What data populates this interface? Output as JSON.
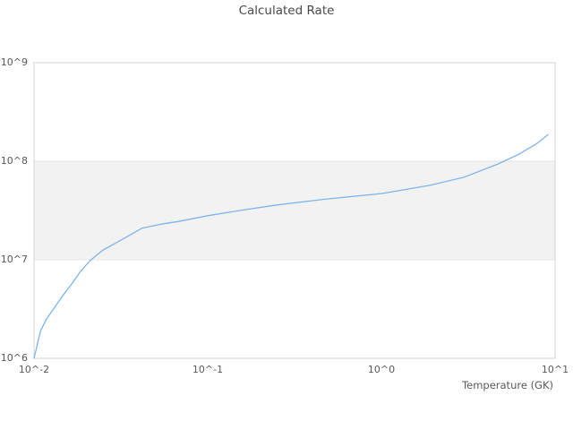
{
  "chart_data": {
    "type": "line",
    "title": "Calculated Rate",
    "xlabel": "Temperature (GK)",
    "ylabel": "",
    "x_scale": "log",
    "y_scale": "log",
    "xlim": [
      0.01,
      10
    ],
    "ylim": [
      1000000,
      1000000000
    ],
    "grid": "horizontal-only",
    "legend": "none",
    "x_ticks": [
      {
        "value": 0.01,
        "label": "10^-2"
      },
      {
        "value": 0.1,
        "label": "10^-1"
      },
      {
        "value": 1,
        "label": "10^0"
      },
      {
        "value": 10,
        "label": "10^1"
      }
    ],
    "y_ticks": [
      {
        "value": 1000000,
        "label": "10^6"
      },
      {
        "value": 10000000,
        "label": "10^7"
      },
      {
        "value": 100000000,
        "label": "10^8"
      },
      {
        "value": 1000000000,
        "label": "10^9"
      }
    ],
    "plot_bands": [
      {
        "from": 10000000,
        "to": 100000000,
        "color": "#f2f2f2"
      }
    ],
    "series": [
      {
        "name": "Calculated Rate",
        "color": "#7cb5ec",
        "points": [
          [
            0.01,
            1000000.0
          ],
          [
            0.0109,
            1900000.0
          ],
          [
            0.0118,
            2500000.0
          ],
          [
            0.013,
            3200000.0
          ],
          [
            0.0146,
            4300000.0
          ],
          [
            0.0165,
            5700000.0
          ],
          [
            0.0185,
            7600000.0
          ],
          [
            0.021,
            9800000.0
          ],
          [
            0.025,
            12600000.0
          ],
          [
            0.03,
            15000000.0
          ],
          [
            0.036,
            18000000.0
          ],
          [
            0.042,
            21000000.0
          ],
          [
            0.054,
            23000000.0
          ],
          [
            0.068,
            24500000.0
          ],
          [
            0.1,
            28000000.0
          ],
          [
            0.16,
            32000000.0
          ],
          [
            0.25,
            36000000.0
          ],
          [
            0.46,
            41000000.0
          ],
          [
            1.0,
            47000000.0
          ],
          [
            1.9,
            57000000.0
          ],
          [
            3.0,
            69000000.0
          ],
          [
            4.7,
            94000000.0
          ],
          [
            6.2,
            118000000.0
          ],
          [
            7.8,
            150000000.0
          ],
          [
            9.1,
            186000000.0
          ]
        ]
      }
    ]
  },
  "colors": {
    "background": "#ffffff",
    "frame": "#d4d4d4",
    "gridline": "#e6e6e6",
    "band": "#f2f2f2",
    "line": "#7cb5ec",
    "title_text": "#4a4a4a",
    "tick_text": "#595959"
  }
}
